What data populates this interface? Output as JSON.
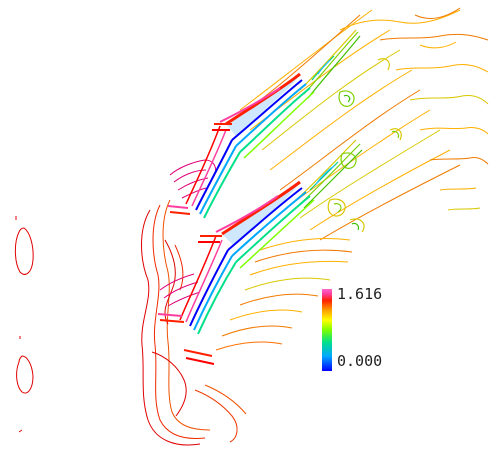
{
  "figure": {
    "background": "#ffffff",
    "legend": {
      "max_label": "1.616",
      "min_label": "0.000",
      "range": [
        0.0,
        1.616
      ],
      "colormap": [
        "#0000ff",
        "#00a8ff",
        "#00e08a",
        "#7cff00",
        "#ffff00",
        "#ffa000",
        "#ff2000",
        "#ff3fa0",
        "#ff66cc"
      ]
    },
    "contour_colors": {
      "low": "#ff0000",
      "mid_low": "#f07a00",
      "mid": "#ffb000",
      "mid_high": "#d8c800",
      "high": "#7cd000",
      "peak": "#20c0ff",
      "blade_shadow": "#0000ff",
      "inlet": "#e0007a"
    },
    "icons": [
      "blade-icon"
    ]
  }
}
